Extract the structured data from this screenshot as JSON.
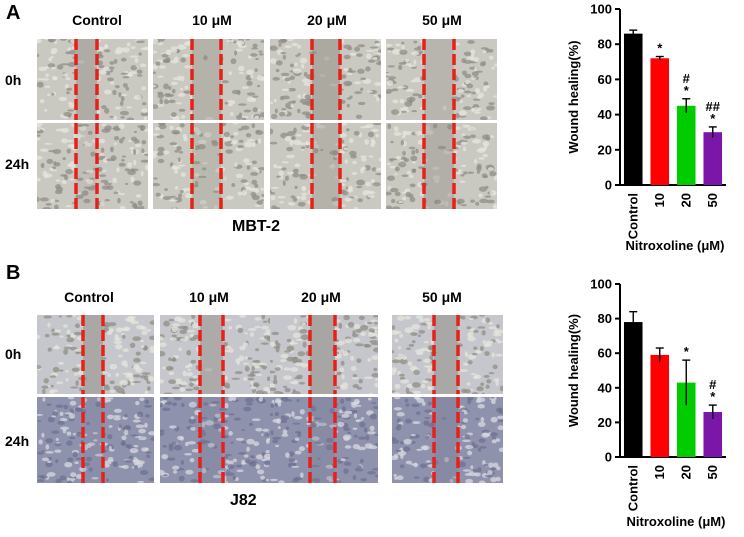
{
  "panel_a": {
    "letter": "A",
    "columns": [
      "Control",
      "10 μM",
      "20 μM",
      "50 μM"
    ],
    "rows": [
      "0h",
      "24h"
    ],
    "cell_line": "MBT-2",
    "colors": {
      "scratch_line": "#e8201a",
      "image_light": "#c9c8c1",
      "image_dark": "#b9b8b0"
    }
  },
  "panel_b": {
    "letter": "B",
    "columns": [
      "Control",
      "10 μM",
      "20 μM",
      "50 μM"
    ],
    "rows": [
      "0h",
      "24h"
    ],
    "cell_line": "J82",
    "colors": {
      "scratch_line": "#e8201a",
      "image_light": "#c6c7cc",
      "image_dark": "#8f92ad"
    }
  },
  "chart_data": [
    {
      "type": "bar",
      "categories": [
        "Control",
        "10",
        "20",
        "50"
      ],
      "values": [
        86,
        72,
        45,
        30
      ],
      "errors": [
        2,
        1,
        4,
        3
      ],
      "significance": [
        "",
        "*",
        "#\n*",
        "##\n*"
      ],
      "colors": [
        "#000000",
        "#ff0000",
        "#00cc00",
        "#7a16a8"
      ],
      "xlabel": "Nitroxoline (μM)",
      "ylabel": "Wound healing(%)",
      "ylim": [
        0,
        100
      ],
      "yticks": [
        0,
        20,
        40,
        60,
        80,
        100
      ]
    },
    {
      "type": "bar",
      "categories": [
        "Control",
        "10",
        "20",
        "50"
      ],
      "values": [
        78,
        59,
        43,
        26
      ],
      "errors": [
        6,
        4,
        13,
        4
      ],
      "significance": [
        "",
        "",
        "*",
        "#\n*"
      ],
      "colors": [
        "#000000",
        "#ff0000",
        "#00cc00",
        "#7a16a8"
      ],
      "xlabel": "Nitroxoline (μM)",
      "ylabel": "Wound healing(%)",
      "ylim": [
        0,
        100
      ],
      "yticks": [
        0,
        20,
        40,
        60,
        80,
        100
      ]
    }
  ]
}
